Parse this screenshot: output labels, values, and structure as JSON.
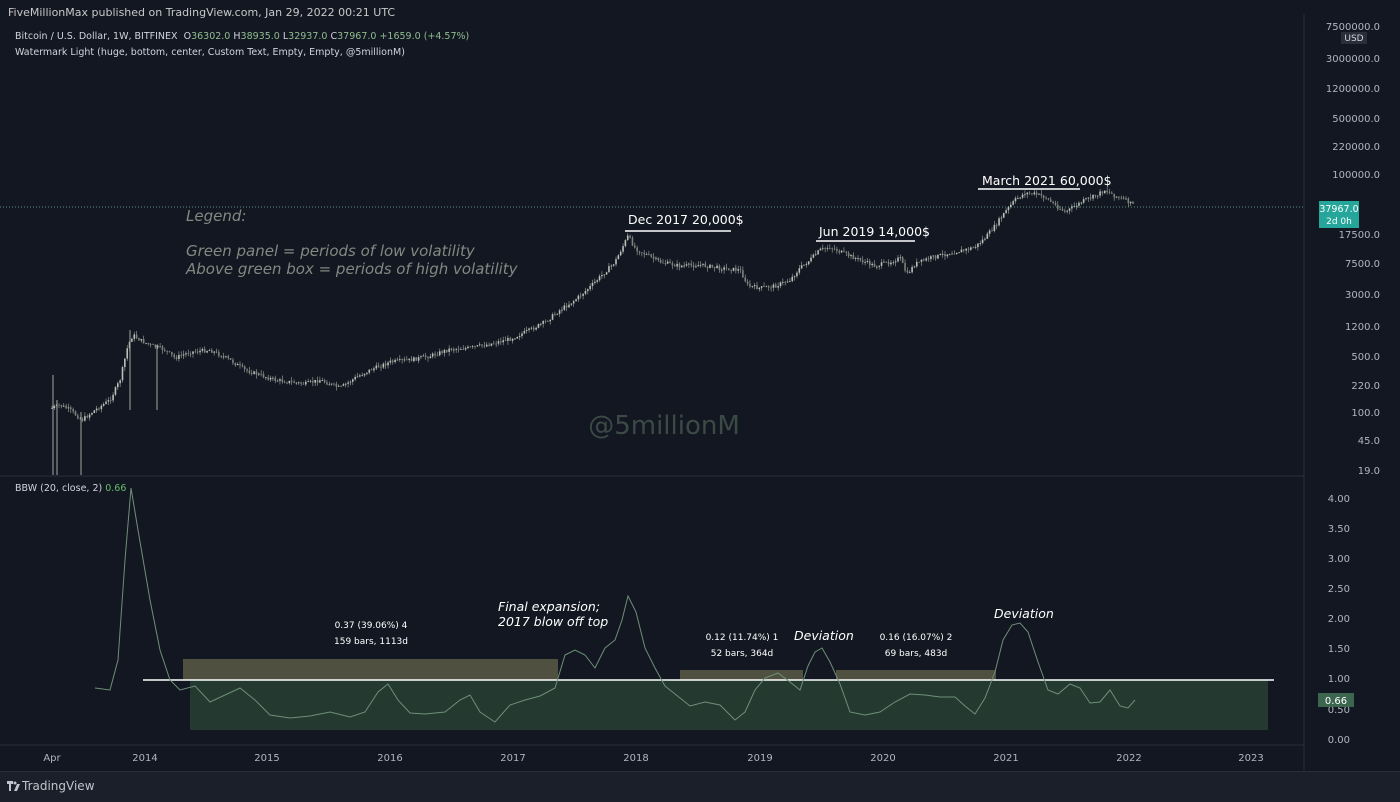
{
  "header": {
    "published": "FiveMillionMax published on TradingView.com, Jan 29, 2022 00:21 UTC"
  },
  "symbol_legend": {
    "name": "Bitcoin / U.S. Dollar, 1W, BITFINEX",
    "open_label": "O",
    "open": "36302.0",
    "high_label": "H",
    "high": "38935.0",
    "low_label": "L",
    "low": "32937.0",
    "close_label": "C",
    "close": "37967.0",
    "change": "+1659.0 (+4.57%)"
  },
  "indicator_legend": "Watermark Light (huge, bottom, center, Custom Text, Empty, Empty, @5millionM)",
  "bbw_legend": {
    "label": "BBW (20, close, 2)",
    "value": "0.66"
  },
  "price_axis": {
    "currency": "USD",
    "ticks": [
      "7500000.0",
      "3000000.0",
      "1200000.0",
      "500000.0",
      "220000.0",
      "100000.0",
      "17500.0",
      "7500.0",
      "3000.0",
      "1200.0",
      "500.0",
      "220.0",
      "100.0",
      "45.0",
      "19.0"
    ],
    "last_price": "37967.0",
    "countdown": "2d 0h"
  },
  "bbw_axis": {
    "ticks": [
      "4.00",
      "3.50",
      "3.00",
      "2.50",
      "2.00",
      "1.50",
      "1.00",
      "0.50",
      "0.00"
    ],
    "current": "0.66"
  },
  "time_axis": [
    "Apr",
    "2014",
    "2015",
    "2016",
    "2017",
    "2018",
    "2019",
    "2020",
    "2021",
    "2022",
    "2023"
  ],
  "legend_text": {
    "title": "Legend:",
    "line1": "Green panel = periods of low volatility",
    "line2": "Above green box = periods of high volatility"
  },
  "price_annotations": [
    "Dec 2017 20,000$",
    "Jun 2019 14,000$",
    "March 2021 60,000$"
  ],
  "watermark": "@5millionM",
  "bbw_annotations": {
    "box1_line1": "0.37 (39.06%) 4",
    "box1_line2": "159 bars, 1113d",
    "final_expansion_1": "Final expansion;",
    "final_expansion_2": "2017 blow off top",
    "box2_line1": "0.12 (11.74%) 1",
    "box2_line2": "52 bars, 364d",
    "deviation_1": "Deviation",
    "box3_line1": "0.16 (16.07%) 2",
    "box3_line2": "69 bars, 483d",
    "deviation_2": "Deviation"
  },
  "footer": {
    "brand": "TradingView"
  },
  "colors": {
    "background": "#131722",
    "up": "#26a69a",
    "down": "#ef5350",
    "candle": "#9ea8a0",
    "bbw_line": "#6e8f78",
    "low_vol_panel": "#2b4535",
    "box": "#5a5a44"
  }
}
